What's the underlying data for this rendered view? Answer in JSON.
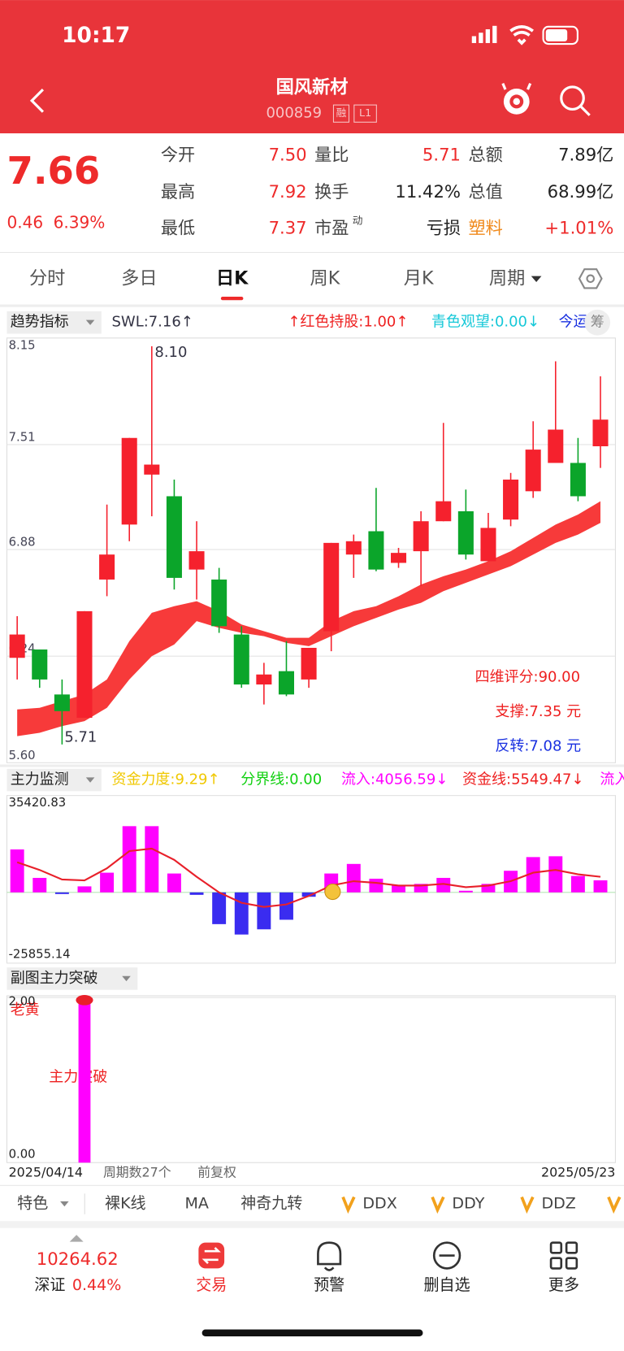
{
  "status_bar": {
    "time": "10:17"
  },
  "header": {
    "title": "国风新材",
    "code": "000859",
    "badges": [
      "融",
      "L1"
    ]
  },
  "quote": {
    "price": "7.66",
    "change": "0.46",
    "change_pct": "6.39%",
    "fields": [
      {
        "label": "今开",
        "value": "7.50"
      },
      {
        "label": "量比",
        "value": "5.71"
      },
      {
        "label": "总额",
        "value": "7.89亿"
      },
      {
        "label": "最高",
        "value": "7.92"
      },
      {
        "label": "换手",
        "value": "11.42%"
      },
      {
        "label": "总值",
        "value": "68.99亿"
      },
      {
        "label": "最低",
        "value": "7.37"
      },
      {
        "label": "市盈",
        "sup": "动",
        "value": "亏损"
      },
      {
        "label": "塑料",
        "value": "+1.01%"
      }
    ]
  },
  "tabs": [
    "分时",
    "多日",
    "日K",
    "周K",
    "月K",
    "周期"
  ],
  "active_tab": 2,
  "kline": {
    "indicator": "趋势指标",
    "legend": [
      "SWL:7.16↑",
      "↑红色持股:1.00↑",
      "青色观望:0.00↓",
      "今运"
    ],
    "chip_button": "筹",
    "ylim": [
      5.6,
      8.15
    ],
    "yticks": [
      {
        "value": 5.6,
        "label": "5.60"
      },
      6.24,
      6.88,
      7.51,
      8.15
    ],
    "open": [
      6.23,
      6.28,
      6.01,
      5.87,
      6.7,
      7.03,
      7.33,
      7.2,
      6.76,
      6.7,
      6.37,
      6.07,
      6.15,
      6.1,
      6.39,
      6.85,
      6.99,
      6.8,
      6.87,
      7.05,
      7.11,
      6.81,
      7.06,
      7.23,
      7.4,
      7.4,
      7.5
    ],
    "high": [
      6.48,
      6.28,
      6.1,
      6.51,
      7.15,
      7.55,
      8.1,
      7.3,
      7.05,
      6.77,
      6.42,
      6.2,
      6.33,
      6.29,
      6.92,
      6.97,
      7.25,
      6.89,
      7.11,
      7.64,
      7.24,
      7.1,
      7.34,
      7.65,
      8.01,
      7.55,
      7.92
    ],
    "low": [
      6.1,
      6.05,
      5.71,
      5.87,
      6.6,
      6.93,
      7.08,
      6.64,
      6.58,
      6.38,
      6.05,
      5.95,
      6.0,
      6.05,
      6.27,
      6.71,
      6.75,
      6.77,
      6.66,
      7.05,
      6.82,
      6.81,
      7.02,
      7.19,
      7.4,
      7.17,
      7.37
    ],
    "close": [
      6.37,
      6.1,
      5.91,
      6.51,
      6.85,
      7.55,
      7.39,
      6.71,
      6.87,
      6.42,
      6.07,
      6.13,
      6.01,
      6.29,
      6.92,
      6.93,
      6.76,
      6.86,
      7.05,
      7.17,
      6.85,
      7.01,
      7.3,
      7.48,
      7.6,
      7.2,
      7.66
    ],
    "band_upper": [
      5.92,
      5.93,
      5.97,
      6.01,
      6.1,
      6.33,
      6.5,
      6.54,
      6.57,
      6.51,
      6.43,
      6.39,
      6.35,
      6.35,
      6.45,
      6.51,
      6.54,
      6.6,
      6.67,
      6.72,
      6.76,
      6.81,
      6.87,
      6.95,
      7.03,
      7.09,
      7.17
    ],
    "band_lower": [
      5.76,
      5.78,
      5.82,
      5.85,
      5.93,
      6.1,
      6.24,
      6.31,
      6.45,
      6.41,
      6.38,
      6.36,
      6.32,
      6.3,
      6.36,
      6.42,
      6.47,
      6.52,
      6.56,
      6.63,
      6.68,
      6.73,
      6.78,
      6.85,
      6.92,
      6.97,
      7.04
    ],
    "up_color": "#f5212d",
    "down_color": "#0ba52a",
    "band_color": "#f73a3a",
    "high_label": "8.10",
    "low_label": "5.71",
    "notes": [
      "四维评分:90.00",
      "支撑:7.35 元",
      "反转:7.08 元"
    ]
  },
  "flow": {
    "indicator": "主力监测",
    "legend": [
      "资金力度:9.29↑",
      "分界线:0.00",
      "流入:4056.59↓",
      "资金线:5549.47↓",
      "流入"
    ],
    "ylim": [
      -25855.14,
      35420.83
    ],
    "yticks": [
      -25855.14,
      35420.83
    ],
    "bars": [
      15700,
      5300,
      -600,
      2200,
      7200,
      24200,
      24200,
      6900,
      -900,
      -11600,
      -15400,
      -13500,
      -10000,
      -1600,
      6900,
      10400,
      5000,
      2500,
      3100,
      5300,
      600,
      3100,
      7900,
      12900,
      13200,
      6000,
      4400
    ],
    "line": [
      11000,
      8200,
      4700,
      4400,
      8800,
      15100,
      16000,
      11900,
      5700,
      0,
      -3800,
      -5300,
      -4400,
      -1300,
      2500,
      4100,
      3500,
      2500,
      2500,
      3100,
      1900,
      2500,
      4100,
      7200,
      8200,
      6600,
      5700
    ],
    "up_color": "#ff00ff",
    "down_color": "#3a2cf0",
    "line_color": "#e8202a"
  },
  "breakout": {
    "indicator": "副图主力突破",
    "ylim": [
      0,
      2
    ],
    "yticks": [
      {
        "value": 0,
        "label": "0.00"
      },
      {
        "value": 2,
        "label": "2.00"
      }
    ],
    "values": [
      0,
      0,
      0,
      2,
      0,
      0,
      0,
      0,
      0,
      0,
      0,
      0,
      0,
      0,
      0,
      0,
      0,
      0,
      0,
      0,
      0,
      0,
      0,
      0,
      0,
      0,
      0
    ],
    "color": "#ff00ff",
    "labels": [
      "老黄",
      "主力突破"
    ]
  },
  "period": {
    "start": "2025/04/14",
    "count": "周期数27个",
    "adjust": "前复权",
    "end": "2025/05/23"
  },
  "toolbar": [
    "特色",
    "裸K线",
    "MA",
    "神奇九转",
    "DDX",
    "DDY",
    "DDZ"
  ],
  "bottom": {
    "index_value": "10264.62",
    "index_name": "深证",
    "index_pct": "0.44%",
    "nav": [
      "交易",
      "预警",
      "删自选",
      "更多"
    ]
  }
}
